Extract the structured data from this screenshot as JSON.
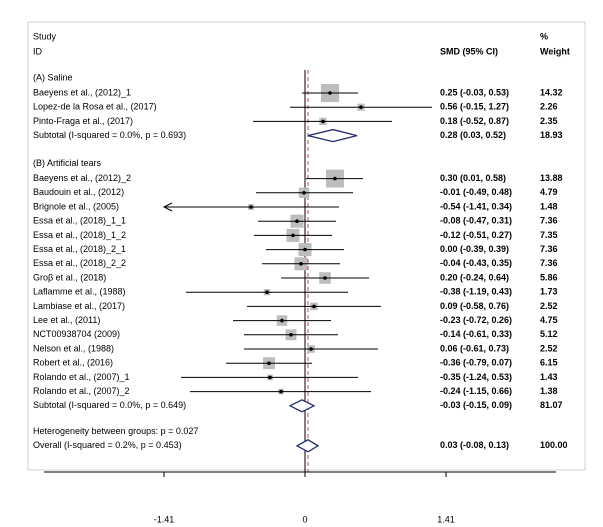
{
  "chart_data": {
    "type": "forest",
    "column_headers": {
      "study": "Study",
      "id": "ID",
      "effect": "SMD (95% CI)",
      "pct": "%",
      "weight": "Weight"
    },
    "xlim": [
      -2.8,
      2.8
    ],
    "xticks": [
      -1.41,
      0,
      1.41
    ],
    "reference_line": 0,
    "groups": [
      {
        "name": "(A) Saline",
        "studies": [
          {
            "name": "Baeyens et al., (2012)_1",
            "smd": 0.25,
            "lo": -0.03,
            "hi": 0.53,
            "ci_label": "0.25 (-0.03, 0.53)",
            "weight": 14.32
          },
          {
            "name": "Lopez-de la Rosa et al., (2017)",
            "smd": 0.56,
            "lo": -0.15,
            "hi": 1.27,
            "ci_label": "0.56 (-0.15, 1.27)",
            "weight": 2.26
          },
          {
            "name": "Pinto-Fraga et al., (2017)",
            "smd": 0.18,
            "lo": -0.52,
            "hi": 0.87,
            "ci_label": "0.18 (-0.52, 0.87)",
            "weight": 2.35
          }
        ],
        "subtotal": {
          "name": "Subtotal  (I-squared = 0.0%, p = 0.693)",
          "smd": 0.28,
          "lo": 0.03,
          "hi": 0.52,
          "ci_label": "0.28 (0.03, 0.52)",
          "weight": 18.93
        }
      },
      {
        "name": "(B) Artificial tears",
        "studies": [
          {
            "name": "Baeyens et al., (2012)_2",
            "smd": 0.3,
            "lo": 0.01,
            "hi": 0.58,
            "ci_label": "0.30 (0.01, 0.58)",
            "weight": 13.88
          },
          {
            "name": "Baudouin et al., (2012)",
            "smd": -0.01,
            "lo": -0.49,
            "hi": 0.48,
            "ci_label": "-0.01 (-0.49, 0.48)",
            "weight": 4.79
          },
          {
            "name": "Brignole et al., (2005)",
            "smd": -0.54,
            "lo": -1.41,
            "hi": 0.34,
            "ci_label": "-0.54 (-1.41, 0.34)",
            "weight": 1.48
          },
          {
            "name": "Essa et al., (2018)_1_1",
            "smd": -0.08,
            "lo": -0.47,
            "hi": 0.31,
            "ci_label": "-0.08 (-0.47, 0.31)",
            "weight": 7.36
          },
          {
            "name": "Essa et al., (2018)_1_2",
            "smd": -0.12,
            "lo": -0.51,
            "hi": 0.27,
            "ci_label": "-0.12 (-0.51, 0.27)",
            "weight": 7.35
          },
          {
            "name": "Essa et al., (2018)_2_1",
            "smd": 0,
            "lo": -0.39,
            "hi": 0.39,
            "ci_label": "0.00 (-0.39, 0.39)",
            "weight": 7.36
          },
          {
            "name": "Essa et al., (2018)_2_2",
            "smd": -0.04,
            "lo": -0.43,
            "hi": 0.35,
            "ci_label": "-0.04 (-0.43, 0.35)",
            "weight": 7.36
          },
          {
            "name": "Groβ et al., (2018)",
            "smd": 0.2,
            "lo": -0.24,
            "hi": 0.64,
            "ci_label": "0.20 (-0.24, 0.64)",
            "weight": 5.86
          },
          {
            "name": "Laflamme et al., (1988)",
            "smd": -0.38,
            "lo": -1.19,
            "hi": 0.43,
            "ci_label": "-0.38 (-1.19, 0.43)",
            "weight": 1.73
          },
          {
            "name": "Lambiase et al., (2017)",
            "smd": 0.09,
            "lo": -0.58,
            "hi": 0.76,
            "ci_label": "0.09 (-0.58, 0.76)",
            "weight": 2.52
          },
          {
            "name": "Lee et al., (2011)",
            "smd": -0.23,
            "lo": -0.72,
            "hi": 0.26,
            "ci_label": "-0.23 (-0.72, 0.26)",
            "weight": 4.75
          },
          {
            "name": "NCT00938704 (2009)",
            "smd": -0.14,
            "lo": -0.61,
            "hi": 0.33,
            "ci_label": "-0.14 (-0.61, 0.33)",
            "weight": 5.12
          },
          {
            "name": "Nelson et al., (1988)",
            "smd": 0.06,
            "lo": -0.61,
            "hi": 0.73,
            "ci_label": "0.06 (-0.61, 0.73)",
            "weight": 2.52
          },
          {
            "name": "Robert et al., (2016)",
            "smd": -0.36,
            "lo": -0.79,
            "hi": 0.07,
            "ci_label": "-0.36 (-0.79, 0.07)",
            "weight": 6.15
          },
          {
            "name": "Rolando et al., (2007)_1",
            "smd": -0.35,
            "lo": -1.24,
            "hi": 0.53,
            "ci_label": "-0.35 (-1.24, 0.53)",
            "weight": 1.43
          },
          {
            "name": "Rolando et al., (2007)_2",
            "smd": -0.24,
            "lo": -1.15,
            "hi": 0.66,
            "ci_label": "-0.24 (-1.15, 0.66)",
            "weight": 1.38
          }
        ],
        "subtotal": {
          "name": "Subtotal  (I-squared = 0.0%, p = 0.649)",
          "smd": -0.03,
          "lo": -0.15,
          "hi": 0.09,
          "ci_label": "-0.03 (-0.15, 0.09)",
          "weight": 81.07
        }
      }
    ],
    "heterogeneity": "Heterogeneity between groups: p = 0.027",
    "overall": {
      "name": "Overall  (I-squared = 0.2%, p = 0.453)",
      "smd": 0.03,
      "lo": -0.08,
      "hi": 0.13,
      "ci_label": "0.03 (-0.08, 0.13)",
      "weight": 100,
      "weight_label": "100.00"
    }
  }
}
